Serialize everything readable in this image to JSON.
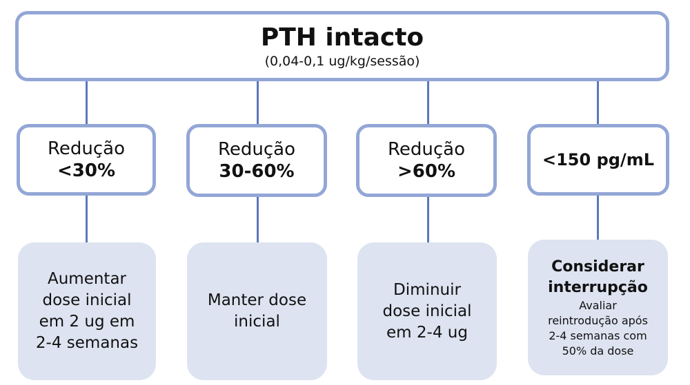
{
  "title": "PTH intacto",
  "subtitle": "(0,04-0,1 ug/kg/sessão)",
  "colors": {
    "border": "#93a6d6",
    "connector": "#5a78bb",
    "fill": "#dde3f0"
  },
  "branches": [
    {
      "label": "Redução",
      "value": "<30%",
      "action": [
        "Aumentar",
        "dose inicial",
        "em 2 ug em",
        "2-4 semanas"
      ]
    },
    {
      "label": "Redução",
      "value": "30-60%",
      "action": [
        "Manter dose",
        "inicial"
      ]
    },
    {
      "label": "Redução",
      "value": ">60%",
      "action": [
        "Diminuir",
        "dose inicial",
        "em 2-4 ug"
      ]
    },
    {
      "label": "",
      "value": "<150 pg/mL",
      "action_title": [
        "Considerar",
        "interrupção"
      ],
      "action": [
        "Avaliar",
        "reintrodução após",
        "2-4 semanas com",
        "50% da dose"
      ]
    }
  ]
}
